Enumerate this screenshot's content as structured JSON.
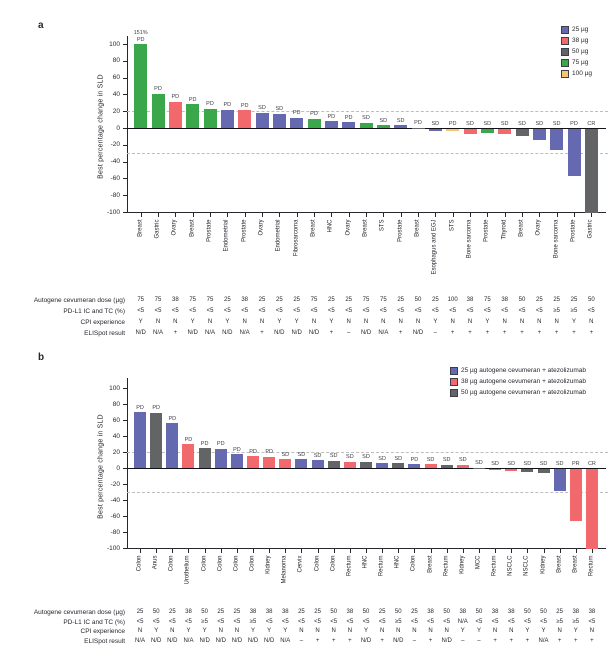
{
  "figure": {
    "dose_colors": {
      "25": "#6569b0",
      "38": "#f1696d",
      "50": "#636466",
      "75": "#3aa74a",
      "100": "#f7c571"
    },
    "text_color": "#26262e",
    "table_row_labels": [
      "Autogene cevumeran dose (µg)",
      "PD-L1 IC and TC (%)",
      "CPI experience",
      "ELISpot result"
    ]
  },
  "chart_data": [
    {
      "type": "bar",
      "panel_label": "a",
      "ylabel": "Best percentage change in SLD",
      "ylim": [
        -100,
        100
      ],
      "yticks": [
        100,
        80,
        60,
        40,
        20,
        0,
        -20,
        -40,
        -60,
        -80,
        -100
      ],
      "ref_lines": [
        20,
        -30
      ],
      "grid": "dashed reference lines at +20 and -30",
      "legend_position": "top-right",
      "legend": [
        {
          "label": "25 µg",
          "dose": "25"
        },
        {
          "label": "38 µg",
          "dose": "38"
        },
        {
          "label": "50 µg",
          "dose": "50"
        },
        {
          "label": "75 µg",
          "dose": "75"
        },
        {
          "label": "100 µg",
          "dose": "100"
        }
      ],
      "categories": [
        "Breast",
        "Gastric",
        "Ovary",
        "Breast",
        "Prostate",
        "Endometrial",
        "Prostate",
        "Ovary",
        "Endometrial",
        "Fibrosarcoma",
        "Breast",
        "HNC",
        "Ovary",
        "Breast",
        "STS",
        "Prostate",
        "Breast",
        "Esophagus and EGJ",
        "STS",
        "Bone sarcoma",
        "Prostate",
        "Thyroid",
        "Breast",
        "Ovary",
        "Bone sarcoma",
        "Prostate",
        "Gastric"
      ],
      "values": [
        100,
        41,
        31,
        28,
        23,
        22,
        21,
        18,
        17,
        12,
        11,
        8,
        7,
        6,
        3,
        3,
        0.5,
        -1.5,
        -2,
        -5,
        -4,
        -5,
        -8,
        -13,
        -24,
        -55,
        -100
      ],
      "doses": [
        "75",
        "75",
        "38",
        "75",
        "75",
        "25",
        "38",
        "25",
        "25",
        "25",
        "75",
        "25",
        "25",
        "75",
        "75",
        "25",
        "50",
        "25",
        "100",
        "38",
        "75",
        "38",
        "50",
        "25",
        "25",
        "25",
        "50"
      ],
      "responses": [
        "PD",
        "PD",
        "PD",
        "PD",
        "PD",
        "PD",
        "PD",
        "SD",
        "SD",
        "PD",
        "PD",
        "PD",
        "PD",
        "SD",
        "SD",
        "SD",
        "PD",
        "SD",
        "PD",
        "SD",
        "SD",
        "SD",
        "SD",
        "SD",
        "SD",
        "PD",
        "CR"
      ],
      "annotations": {
        "0": "151%"
      },
      "table": {
        "dose": [
          "75",
          "75",
          "38",
          "75",
          "75",
          "25",
          "38",
          "25",
          "25",
          "25",
          "75",
          "25",
          "25",
          "75",
          "75",
          "25",
          "50",
          "25",
          "100",
          "38",
          "75",
          "38",
          "50",
          "25",
          "25",
          "25",
          "50"
        ],
        "pdl1": [
          "<5",
          "<5",
          "<5",
          "<5",
          "<5",
          "<5",
          "<5",
          "<5",
          "<5",
          "<5",
          "<5",
          "<5",
          "<5",
          "<5",
          "<5",
          "<5",
          "<5",
          "<5",
          "<5",
          "<5",
          "<5",
          "<5",
          "<5",
          "<5",
          "≥5",
          "≥5",
          "<5"
        ],
        "cpi": [
          "Y",
          "N",
          "N",
          "Y",
          "N",
          "Y",
          "N",
          "N",
          "Y",
          "Y",
          "N",
          "Y",
          "N",
          "N",
          "N",
          "N",
          "N",
          "Y",
          "N",
          "N",
          "Y",
          "N",
          "N",
          "N",
          "N",
          "Y",
          "N"
        ],
        "elispot": [
          "N/D",
          "N/A",
          "+",
          "N/D",
          "N/A",
          "N/D",
          "N/A",
          "+",
          "N/D",
          "N/D",
          "N/D",
          "+",
          "–",
          "N/D",
          "N/A",
          "+",
          "N/D",
          "–",
          "+",
          "+",
          "+",
          "+",
          "+",
          "+",
          "+",
          "+",
          "+"
        ]
      }
    },
    {
      "type": "bar",
      "panel_label": "b",
      "ylabel": "Best percentage change in SLD",
      "ylim": [
        -100,
        100
      ],
      "yticks": [
        100,
        80,
        60,
        40,
        20,
        0,
        -20,
        -40,
        -60,
        -80,
        -100
      ],
      "ref_lines": [
        20,
        -30
      ],
      "grid": "dashed reference lines at +20 and -30",
      "legend_position": "top-right",
      "legend": [
        {
          "label": "25 µg autogene cevumeran + atezolizumab",
          "dose": "25"
        },
        {
          "label": "38 µg autogene cevumeran + atezolizumab",
          "dose": "38"
        },
        {
          "label": "50 µg autogene cevumeran + atezolizumab",
          "dose": "50"
        }
      ],
      "categories": [
        "Colon",
        "Anus",
        "Colon",
        "Urothelium",
        "Colon",
        "Colon",
        "Colon",
        "Colon",
        "Kidney",
        "Melanoma",
        "Cervix",
        "Colon",
        "Colon",
        "Rectum",
        "HNC",
        "Rectum",
        "HNC",
        "Colon",
        "Breast",
        "Rectum",
        "Kidney",
        "MCC",
        "Rectum",
        "NSCLC",
        "NSCLC",
        "Kidney",
        "Breast",
        "Breast",
        "Rectum"
      ],
      "values": [
        70,
        69,
        56,
        30,
        25,
        24,
        17,
        15,
        14,
        11,
        11,
        10,
        9,
        8,
        8,
        6,
        6,
        5,
        5,
        4,
        4,
        0.5,
        -1,
        -2,
        -3,
        -4,
        -27,
        -65,
        -100
      ],
      "doses": [
        "25",
        "50",
        "25",
        "38",
        "50",
        "25",
        "25",
        "38",
        "38",
        "38",
        "25",
        "25",
        "50",
        "38",
        "50",
        "25",
        "50",
        "25",
        "38",
        "50",
        "38",
        "50",
        "38",
        "38",
        "50",
        "50",
        "25",
        "38",
        "38"
      ],
      "responses": [
        "PD",
        "PD",
        "PD",
        "PD",
        "PD",
        "PD",
        "PD",
        "PD",
        "PD",
        "SD",
        "SD",
        "SD",
        "SD",
        "SD",
        "SD",
        "SD",
        "SD",
        "PD",
        "SD",
        "SD",
        "SD",
        "SD",
        "SD",
        "SD",
        "SD",
        "SD",
        "SD",
        "PR",
        "CR"
      ],
      "annotations": {},
      "table": {
        "dose": [
          "25",
          "50",
          "25",
          "38",
          "50",
          "25",
          "25",
          "38",
          "38",
          "38",
          "25",
          "25",
          "50",
          "38",
          "50",
          "25",
          "50",
          "25",
          "38",
          "50",
          "38",
          "50",
          "38",
          "38",
          "50",
          "50",
          "25",
          "38",
          "38"
        ],
        "pdl1": [
          "<5",
          "<5",
          "<5",
          "<5",
          "≥5",
          "<5",
          "<5",
          "≥5",
          "<5",
          "<5",
          "<5",
          "<5",
          "<5",
          "<5",
          "<5",
          "<5",
          "≥5",
          "<5",
          "<5",
          "<5",
          "N/A",
          "<5",
          "<5",
          "<5",
          "<5",
          "<5",
          "≥5",
          "≥5",
          "<5"
        ],
        "cpi": [
          "N",
          "Y",
          "N",
          "Y",
          "Y",
          "N",
          "N",
          "Y",
          "Y",
          "Y",
          "N",
          "N",
          "N",
          "N",
          "Y",
          "N",
          "N",
          "N",
          "N",
          "N",
          "Y",
          "Y",
          "N",
          "N",
          "Y",
          "Y",
          "N",
          "Y",
          "N"
        ],
        "elispot": [
          "N/A",
          "N/D",
          "N/D",
          "N/A",
          "N/D",
          "N/D",
          "N/D",
          "N/D",
          "N/D",
          "N/A",
          "–",
          "+",
          "+",
          "+",
          "N/D",
          "+",
          "N/D",
          "–",
          "+",
          "N/D",
          "–",
          "–",
          "+",
          "+",
          "+",
          "N/A",
          "+",
          "+",
          "+"
        ]
      }
    }
  ]
}
